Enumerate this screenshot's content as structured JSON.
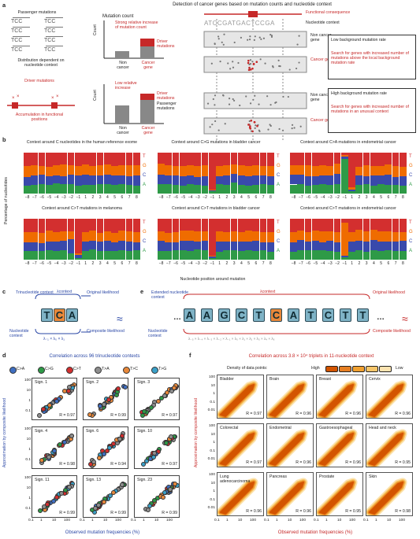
{
  "panel_a": {
    "label": "a",
    "title": "Detection of cancer genes based on mutation counts and nucleotide context",
    "passenger": "Passenger mutations",
    "tcc": "TCC",
    "distribution": "Distribution dependent on nucleotide context",
    "driver": "Driver mutations",
    "accumulation": "Accumulation in functional positions",
    "mutation_count": "Mutation count",
    "count": "Count",
    "strong_increase": "Strong relative increase of mutation count",
    "low_increase": "Low relative increase",
    "driver_mut": "Driver mutations",
    "passenger_mut": "Passenger mutations",
    "non_cancer": "Non cancer",
    "cancer_gene": "Cancer gene",
    "functional_consequence": "Functional consequence",
    "seq_text": "ATCCGATGACTCCGA",
    "nucleotide_context": "Nucleotide context",
    "noncancer_gene": "Non cancer gene",
    "cancer_gene_red": "Cancer gene",
    "low_bg": "Low background mutation rate",
    "low_bg_search": "Search for genes with increased number of mutations above the local background mutation rate",
    "high_bg": "High background mutation rate",
    "high_bg_search": "Search for genes with increased number of mutations in an unusual context"
  },
  "panel_b": {
    "label": "b",
    "ylabel": "Percentage of nucleotides",
    "xlabel": "Nucleotide position around mutation",
    "titles": [
      "Context around C nucleotides in the human reference exome",
      "Context around C>G mutations in bladder cancer",
      "Context around C>A mutations in endometrial cancer",
      "Context around C>T mutations in melanoma",
      "Context around C>T mutations in bladder cancer",
      "Context around C>T mutations in endometrial cancer"
    ],
    "letters": [
      "T",
      "G",
      "C",
      "A"
    ],
    "ticks": [
      "−8",
      "−7",
      "−6",
      "−5",
      "−4",
      "−3",
      "−2",
      "−1",
      "1",
      "2",
      "3",
      "4",
      "5",
      "6",
      "7",
      "8"
    ],
    "colors": {
      "T": "#d32f2f",
      "G": "#ef6c00",
      "C": "#3949ab",
      "A": "#2e9a47"
    }
  },
  "panel_c": {
    "label": "c",
    "trinucleotide": "Trinucleotide context",
    "lambda": "λcontext",
    "original": "Original likelihood",
    "seq": [
      "T",
      "C",
      "A"
    ],
    "nuc_context": "Nucleotide context",
    "composite": "Composite likelihood",
    "approx": "≈"
  },
  "panel_e": {
    "label": "e",
    "extended": "Extended nucleotide context",
    "lambda": "λcontext",
    "original": "Original likelihood",
    "seq": [
      "A",
      "A",
      "G",
      "C",
      "T",
      "C",
      "A",
      "T",
      "C",
      "T",
      "T"
    ],
    "nuc_context": "Nucleotide context",
    "composite": "Composite likelihood",
    "dots": "…",
    "approx": "≈"
  },
  "panel_d": {
    "label": "d",
    "title": "Correlation across 96 trinucleotide contexts",
    "legend": [
      {
        "name": "C>A",
        "color": "#3f6fc2"
      },
      {
        "name": "C>G",
        "color": "#2e9a47"
      },
      {
        "name": "C>T",
        "color": "#d32f2f"
      },
      {
        "name": "T>A",
        "color": "#8e8e8e"
      },
      {
        "name": "T>C",
        "color": "#e8883a"
      },
      {
        "name": "T>G",
        "color": "#3aa0c8"
      }
    ],
    "ylabel": "Approximation by composite likelihood",
    "xlabel": "Observed mutation frequencies (%)",
    "yticks": [
      "100",
      "10",
      "1",
      "0.1"
    ],
    "xticks": [
      "0.1",
      "1",
      "10",
      "100"
    ],
    "panels": [
      {
        "name": "Sign. 1",
        "r": "R = 0.97"
      },
      {
        "name": "Sign. 2",
        "r": "R = 0.99"
      },
      {
        "name": "Sign. 3",
        "r": "R = 0.97"
      },
      {
        "name": "Sign. 4",
        "r": "R = 0.98"
      },
      {
        "name": "Sign. 6",
        "r": "R = 0.94"
      },
      {
        "name": "Sign. 10",
        "r": "R = 0.97"
      },
      {
        "name": "Sign. 11",
        "r": "R = 0.99"
      },
      {
        "name": "Sign. 13",
        "r": "R = 0.99"
      },
      {
        "name": "Sign. 23",
        "r": "R = 0.99"
      }
    ]
  },
  "panel_f": {
    "label": "f",
    "title": "Correlation across 3.8 × 10⁴ triplets in 11-nucleotide context",
    "density": "Density of data points:",
    "high": "High",
    "low": "Low",
    "ylabel": "Approximation by composite likelihood",
    "xlabel": "Observed mutation frequencies (%)",
    "yticks": [
      "100",
      "10",
      "1",
      "0.1",
      "0.01"
    ],
    "xticks": [
      "0.1",
      "1",
      "10",
      "100"
    ],
    "panels": [
      {
        "name": "Bladder",
        "r": "R = 0.97"
      },
      {
        "name": "Brain",
        "r": "R = 0.96"
      },
      {
        "name": "Breast",
        "r": "R = 0.96"
      },
      {
        "name": "Cervix",
        "r": "R = 0.96"
      },
      {
        "name": "Colorectal",
        "r": "R = 0.97"
      },
      {
        "name": "Endometrial",
        "r": "R = 0.96"
      },
      {
        "name": "Gastroesophageal",
        "r": "R = 0.96"
      },
      {
        "name": "Head and neck",
        "r": "R = 0.95"
      },
      {
        "name": "Lung adenocarcinoma",
        "r": "R = 0.96"
      },
      {
        "name": "Pancreas",
        "r": "R = 0.96"
      },
      {
        "name": "Prostate",
        "r": "R = 0.95"
      },
      {
        "name": "Skin",
        "r": "R = 0.98"
      }
    ]
  }
}
